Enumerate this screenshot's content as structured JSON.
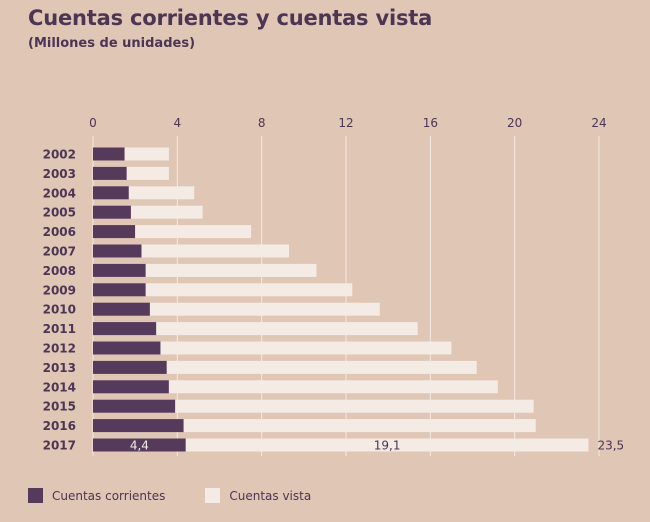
{
  "title": "Cuentas corrientes y cuentas vista",
  "subtitle": "(Millones de unidades)",
  "colors": {
    "background": "#dfc6b5",
    "corrientes": "#553a5c",
    "vista": "#f4ebe4",
    "text": "#4d3554",
    "grid": "#f4ebe4"
  },
  "chart_data": {
    "type": "bar",
    "orientation": "horizontal",
    "stacked": true,
    "title": "Cuentas corrientes y cuentas vista",
    "subtitle": "(Millones de unidades)",
    "categories": [
      "2002",
      "2003",
      "2004",
      "2005",
      "2006",
      "2007",
      "2008",
      "2009",
      "2010",
      "2011",
      "2012",
      "2013",
      "2014",
      "2015",
      "2016",
      "2017"
    ],
    "series": [
      {
        "name": "Cuentas corrientes",
        "values": [
          1.5,
          1.6,
          1.7,
          1.8,
          2.0,
          2.3,
          2.5,
          2.5,
          2.7,
          3.0,
          3.2,
          3.5,
          3.6,
          3.9,
          4.3,
          4.4
        ]
      },
      {
        "name": "Cuentas vista",
        "values": [
          2.1,
          2.0,
          3.1,
          3.4,
          5.5,
          7.0,
          8.1,
          9.8,
          10.9,
          12.4,
          13.8,
          14.7,
          15.6,
          17.0,
          16.7,
          19.1
        ]
      }
    ],
    "xlim": [
      0,
      24
    ],
    "xticks": [
      "0",
      "4",
      "8",
      "12",
      "16",
      "20",
      "24"
    ],
    "grid": true,
    "legend": "bottom-left",
    "annotations": {
      "corrientes_last": "4,4",
      "vista_last": "19,1",
      "total_last": "23,5"
    }
  }
}
